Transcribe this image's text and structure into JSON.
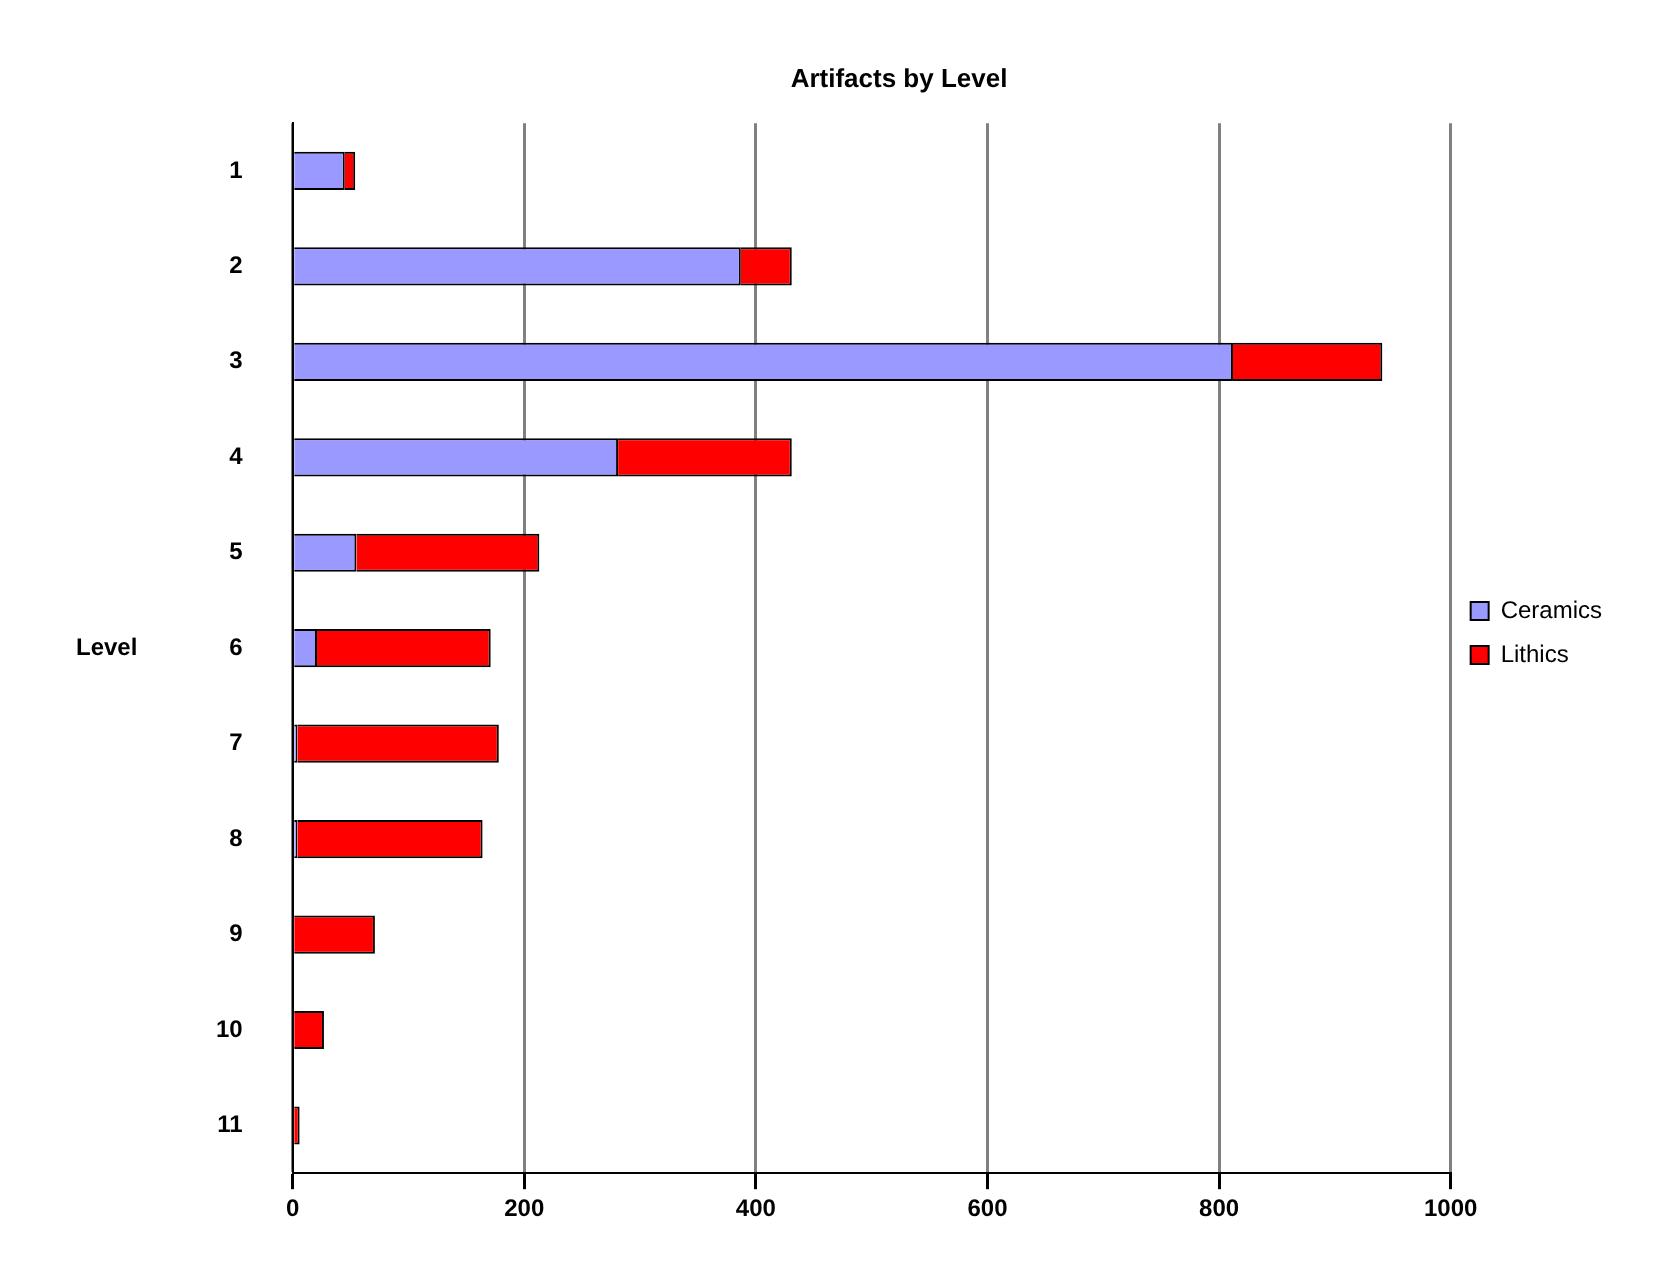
{
  "chart_data": {
    "type": "bar",
    "orientation": "horizontal",
    "stacked": true,
    "title": "Artifacts by Level",
    "ylabel": "Level",
    "categories": [
      "1",
      "2",
      "3",
      "4",
      "5",
      "6",
      "7",
      "8",
      "9",
      "10",
      "11"
    ],
    "series": [
      {
        "name": "Ceramics",
        "color": "#9999ff",
        "values": [
          45,
          387,
          812,
          281,
          55,
          21,
          4,
          4,
          0,
          0,
          0
        ]
      },
      {
        "name": "Lithics",
        "color": "#ff0000",
        "values": [
          9,
          44,
          129,
          150,
          158,
          150,
          174,
          160,
          71,
          27,
          6
        ]
      }
    ],
    "xlim": [
      0,
      1000
    ],
    "xticks": [
      0,
      200,
      400,
      600,
      800,
      1000
    ],
    "grid": "x",
    "legend": "right"
  }
}
